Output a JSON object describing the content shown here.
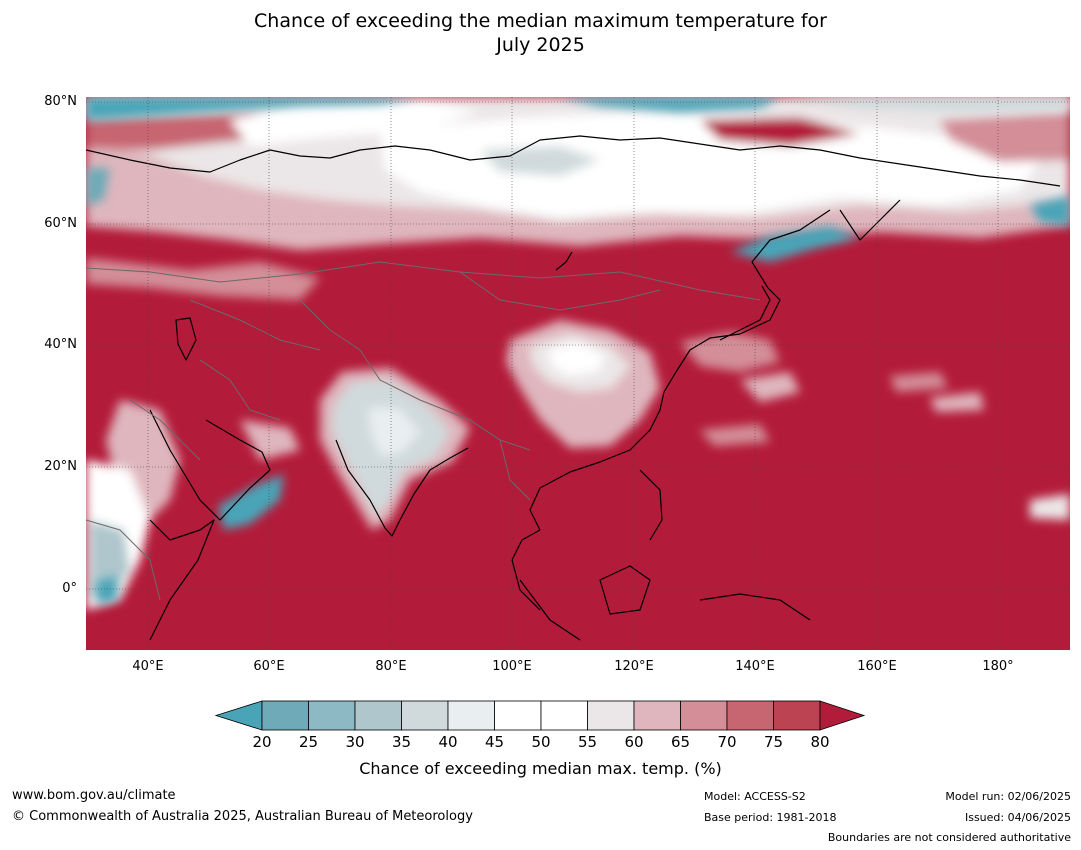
{
  "title_line1": "Chance of exceeding the median maximum temperature for",
  "title_line2": "July 2025",
  "map": {
    "lat_labels": [
      "80°N",
      "60°N",
      "40°N",
      "20°N",
      "0°"
    ],
    "lon_labels": [
      "40°E",
      "60°E",
      "80°E",
      "100°E",
      "120°E",
      "140°E",
      "160°E",
      "180°"
    ],
    "extent": {
      "lon_min": 30,
      "lon_max": 192,
      "lat_min": -10,
      "lat_max": 81
    }
  },
  "colorbar": {
    "ticks": [
      "20",
      "25",
      "30",
      "35",
      "40",
      "45",
      "50",
      "55",
      "60",
      "65",
      "70",
      "75",
      "80"
    ],
    "label": "Chance of exceeding median max. temp. (%)",
    "colors": [
      "#4aa4b8",
      "#6eaab7",
      "#8cb9c4",
      "#aec6cc",
      "#d0dadc",
      "#e9eff1",
      "#ffffff",
      "#ffffff",
      "#ebe6e7",
      "#dfb6bd",
      "#d38e98",
      "#c76571",
      "#bc4351",
      "#b31b3a"
    ]
  },
  "footer": {
    "url": "www.bom.gov.au/climate",
    "copyright": "© Commonwealth of Australia 2025, Australian Bureau of Meteorology",
    "model": "Model: ACCESS-S2",
    "base_period": "Base period: 1981-2018",
    "model_run": "Model run: 02/06/2025",
    "issued": "Issued: 04/06/2025",
    "boundaries": "Boundaries are not considered authoritative"
  }
}
